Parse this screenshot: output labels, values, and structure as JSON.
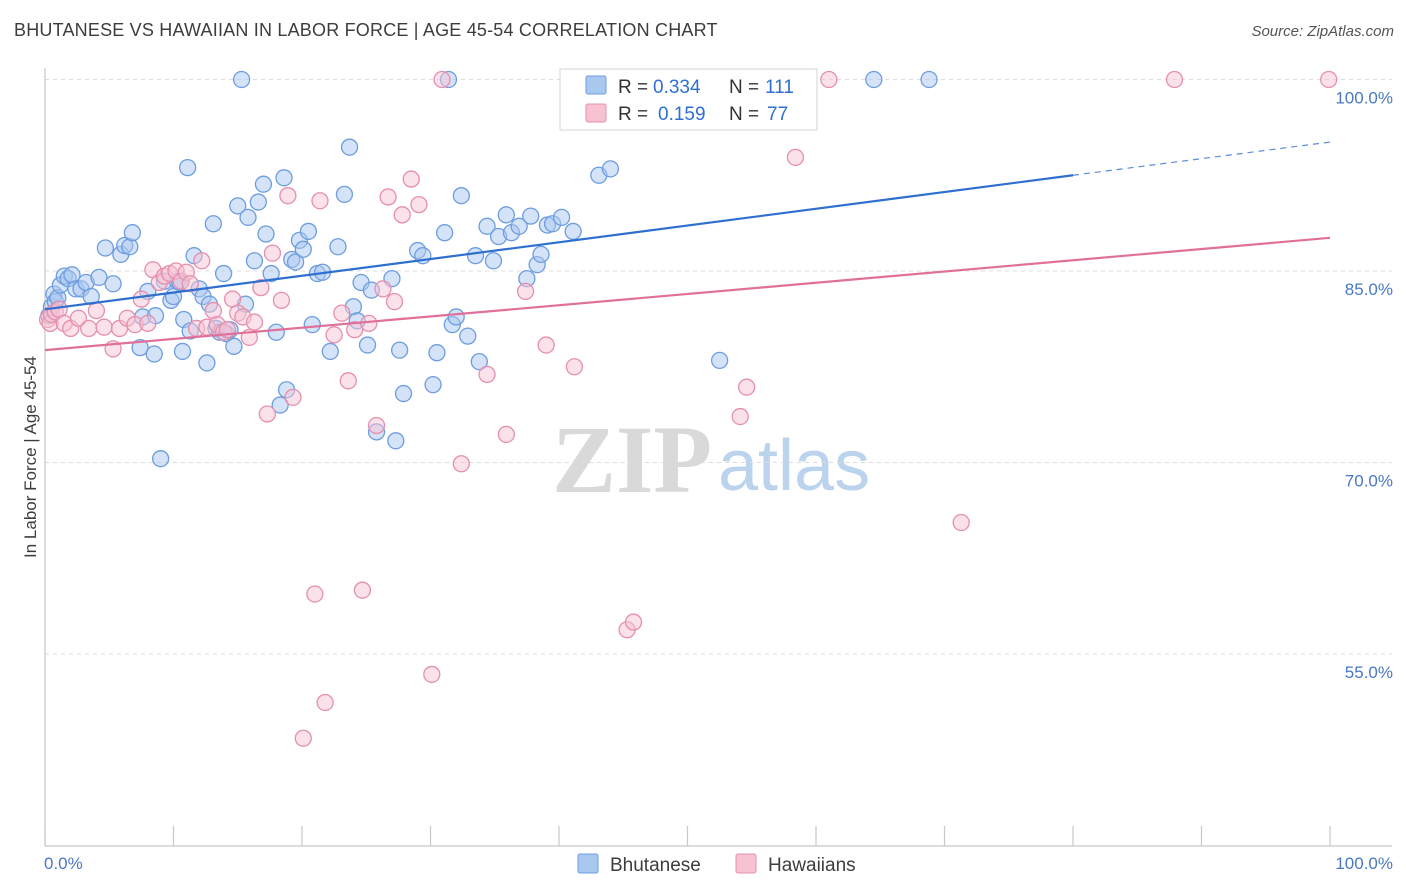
{
  "title": "BHUTANESE VS HAWAIIAN IN LABOR FORCE | AGE 45-54 CORRELATION CHART",
  "source": "Source: ZipAtlas.com",
  "watermark": {
    "zip": "ZIP",
    "atlas": "atlas"
  },
  "colors": {
    "blue_fill": "#a9c8f0",
    "blue_stroke": "#6d9de0",
    "blue_line": "#2f6fd0",
    "pink_fill": "#f7c3d3",
    "pink_stroke": "#e58fae",
    "pink_line": "#e0709a",
    "tick_label": "#4a78c2",
    "grid": "#dcdcdc"
  },
  "legend": {
    "r_label": "R =",
    "n_label": "N =",
    "rows": [
      {
        "r": "0.334",
        "n": "111"
      },
      {
        "r": "0.159",
        "n": "77"
      }
    ]
  },
  "chart_data": {
    "type": "scatter",
    "ylabel": "In Labor Force | Age 45-54",
    "xlabel": "",
    "xlim": [
      0,
      100
    ],
    "ylim": [
      40.5,
      103
    ],
    "x_tick_labels": [
      "0.0%",
      "100.0%"
    ],
    "y_ticks": [
      55,
      70,
      85,
      100
    ],
    "y_tick_labels": [
      "55.0%",
      "70.0%",
      "85.0%",
      "100.0%"
    ],
    "grid": "horizontal dashed",
    "series": [
      {
        "name": "Bhutanese",
        "r": 0.334,
        "n": 111,
        "trend": {
          "x0": 0,
          "y0": 82.0,
          "x1": 80,
          "y1": 92.5,
          "dashed_to_x": 100,
          "dashed_to_y": 95.1
        },
        "points": [
          [
            0.3,
            81.5
          ],
          [
            0.5,
            82.2
          ],
          [
            0.7,
            83.2
          ],
          [
            0.8,
            82.6
          ],
          [
            1.0,
            82.9
          ],
          [
            1.2,
            83.9
          ],
          [
            1.5,
            84.6
          ],
          [
            1.8,
            84.4
          ],
          [
            2.1,
            84.7
          ],
          [
            2.4,
            83.6
          ],
          [
            2.8,
            83.6
          ],
          [
            3.2,
            84.1
          ],
          [
            3.6,
            83.0
          ],
          [
            4.2,
            84.5
          ],
          [
            4.7,
            86.8
          ],
          [
            5.3,
            84.0
          ],
          [
            5.9,
            86.3
          ],
          [
            6.2,
            87.0
          ],
          [
            6.6,
            86.9
          ],
          [
            6.8,
            88.0
          ],
          [
            7.4,
            79.0
          ],
          [
            7.6,
            81.4
          ],
          [
            8.0,
            83.4
          ],
          [
            8.5,
            78.5
          ],
          [
            8.6,
            81.5
          ],
          [
            9.0,
            70.3
          ],
          [
            9.3,
            84.2
          ],
          [
            9.8,
            82.7
          ],
          [
            10.0,
            83.0
          ],
          [
            10.3,
            84.2
          ],
          [
            10.5,
            84.1
          ],
          [
            10.7,
            78.7
          ],
          [
            10.8,
            81.2
          ],
          [
            11.1,
            93.1
          ],
          [
            11.3,
            80.3
          ],
          [
            11.6,
            86.2
          ],
          [
            12.0,
            83.6
          ],
          [
            12.3,
            83.0
          ],
          [
            12.6,
            77.8
          ],
          [
            12.8,
            82.4
          ],
          [
            13.1,
            88.7
          ],
          [
            13.3,
            80.5
          ],
          [
            13.6,
            80.2
          ],
          [
            13.9,
            84.8
          ],
          [
            14.1,
            80.1
          ],
          [
            14.4,
            80.4
          ],
          [
            14.7,
            79.1
          ],
          [
            15.0,
            90.1
          ],
          [
            15.3,
            100.0
          ],
          [
            15.6,
            82.4
          ],
          [
            15.8,
            89.2
          ],
          [
            16.3,
            85.8
          ],
          [
            16.6,
            90.4
          ],
          [
            17.0,
            91.8
          ],
          [
            17.2,
            87.9
          ],
          [
            17.6,
            84.8
          ],
          [
            18.0,
            80.2
          ],
          [
            18.3,
            74.5
          ],
          [
            18.6,
            92.3
          ],
          [
            18.8,
            75.7
          ],
          [
            19.2,
            85.9
          ],
          [
            19.5,
            85.7
          ],
          [
            19.8,
            87.4
          ],
          [
            20.1,
            86.7
          ],
          [
            20.5,
            88.1
          ],
          [
            20.8,
            80.8
          ],
          [
            21.2,
            84.8
          ],
          [
            21.6,
            84.9
          ],
          [
            22.2,
            78.7
          ],
          [
            22.8,
            86.9
          ],
          [
            23.3,
            91.0
          ],
          [
            23.7,
            94.7
          ],
          [
            24.0,
            82.2
          ],
          [
            24.3,
            81.1
          ],
          [
            24.6,
            84.1
          ],
          [
            25.1,
            79.2
          ],
          [
            25.4,
            83.5
          ],
          [
            25.8,
            72.4
          ],
          [
            27.0,
            84.4
          ],
          [
            27.3,
            71.7
          ],
          [
            27.6,
            78.8
          ],
          [
            27.9,
            75.4
          ],
          [
            29.0,
            86.6
          ],
          [
            29.4,
            86.2
          ],
          [
            30.2,
            76.1
          ],
          [
            30.5,
            78.6
          ],
          [
            31.1,
            88.0
          ],
          [
            31.4,
            100.0
          ],
          [
            31.7,
            80.8
          ],
          [
            32.0,
            81.4
          ],
          [
            32.4,
            90.9
          ],
          [
            32.9,
            79.9
          ],
          [
            33.5,
            86.2
          ],
          [
            33.8,
            77.9
          ],
          [
            34.4,
            88.5
          ],
          [
            34.9,
            85.8
          ],
          [
            35.3,
            87.7
          ],
          [
            35.9,
            89.4
          ],
          [
            36.3,
            88.0
          ],
          [
            36.9,
            88.5
          ],
          [
            37.5,
            84.4
          ],
          [
            37.8,
            89.3
          ],
          [
            38.3,
            85.5
          ],
          [
            38.6,
            86.3
          ],
          [
            39.1,
            88.6
          ],
          [
            39.5,
            88.7
          ],
          [
            40.2,
            89.2
          ],
          [
            41.1,
            88.1
          ],
          [
            43.1,
            92.5
          ],
          [
            44.0,
            93.0
          ],
          [
            52.5,
            78.0
          ],
          [
            64.5,
            100.0
          ],
          [
            68.8,
            100.0
          ]
        ]
      },
      {
        "name": "Hawaiians",
        "r": 0.159,
        "n": 77,
        "trend": {
          "x0": 0,
          "y0": 78.8,
          "x1": 100,
          "y1": 87.6
        },
        "points": [
          [
            0.2,
            81.2
          ],
          [
            0.4,
            80.9
          ],
          [
            0.5,
            81.6
          ],
          [
            0.8,
            81.8
          ],
          [
            1.1,
            82.0
          ],
          [
            1.5,
            80.9
          ],
          [
            2.0,
            80.5
          ],
          [
            2.6,
            81.3
          ],
          [
            3.4,
            80.5
          ],
          [
            4.0,
            81.9
          ],
          [
            4.6,
            80.6
          ],
          [
            5.3,
            78.9
          ],
          [
            5.8,
            80.5
          ],
          [
            6.4,
            81.3
          ],
          [
            7.0,
            80.8
          ],
          [
            7.5,
            82.8
          ],
          [
            8.0,
            80.9
          ],
          [
            8.4,
            85.1
          ],
          [
            8.9,
            84.1
          ],
          [
            9.3,
            84.6
          ],
          [
            9.7,
            84.8
          ],
          [
            10.2,
            85.0
          ],
          [
            10.6,
            84.2
          ],
          [
            11.0,
            84.9
          ],
          [
            11.3,
            84.0
          ],
          [
            11.8,
            80.5
          ],
          [
            12.2,
            85.8
          ],
          [
            12.6,
            80.6
          ],
          [
            13.1,
            81.9
          ],
          [
            13.4,
            80.8
          ],
          [
            13.9,
            80.2
          ],
          [
            14.2,
            80.4
          ],
          [
            14.6,
            82.8
          ],
          [
            15.0,
            81.7
          ],
          [
            15.4,
            81.4
          ],
          [
            15.9,
            79.8
          ],
          [
            16.3,
            81.0
          ],
          [
            16.8,
            83.7
          ],
          [
            17.3,
            73.8
          ],
          [
            17.7,
            86.4
          ],
          [
            18.4,
            82.7
          ],
          [
            18.9,
            90.9
          ],
          [
            19.3,
            75.1
          ],
          [
            20.1,
            48.4
          ],
          [
            21.0,
            59.7
          ],
          [
            21.4,
            90.5
          ],
          [
            21.8,
            51.2
          ],
          [
            22.5,
            80.0
          ],
          [
            23.1,
            81.7
          ],
          [
            23.6,
            76.4
          ],
          [
            24.1,
            80.4
          ],
          [
            24.7,
            60.0
          ],
          [
            25.2,
            80.9
          ],
          [
            25.8,
            72.9
          ],
          [
            26.3,
            83.6
          ],
          [
            26.7,
            90.8
          ],
          [
            27.2,
            82.6
          ],
          [
            27.8,
            89.4
          ],
          [
            28.5,
            92.2
          ],
          [
            29.1,
            90.2
          ],
          [
            30.1,
            53.4
          ],
          [
            30.9,
            100.0
          ],
          [
            32.4,
            69.9
          ],
          [
            34.4,
            76.9
          ],
          [
            35.9,
            72.2
          ],
          [
            37.4,
            83.4
          ],
          [
            39.0,
            79.2
          ],
          [
            41.2,
            77.5
          ],
          [
            45.3,
            56.9
          ],
          [
            45.8,
            57.5
          ],
          [
            50.2,
            97.3
          ],
          [
            54.1,
            73.6
          ],
          [
            54.6,
            75.9
          ],
          [
            58.4,
            93.9
          ],
          [
            61.0,
            100.0
          ],
          [
            71.3,
            65.3
          ],
          [
            87.9,
            100.0
          ],
          [
            99.9,
            100.0
          ]
        ]
      }
    ]
  },
  "bottom_legend": [
    {
      "label": "Bhutanese"
    },
    {
      "label": "Hawaiians"
    }
  ]
}
